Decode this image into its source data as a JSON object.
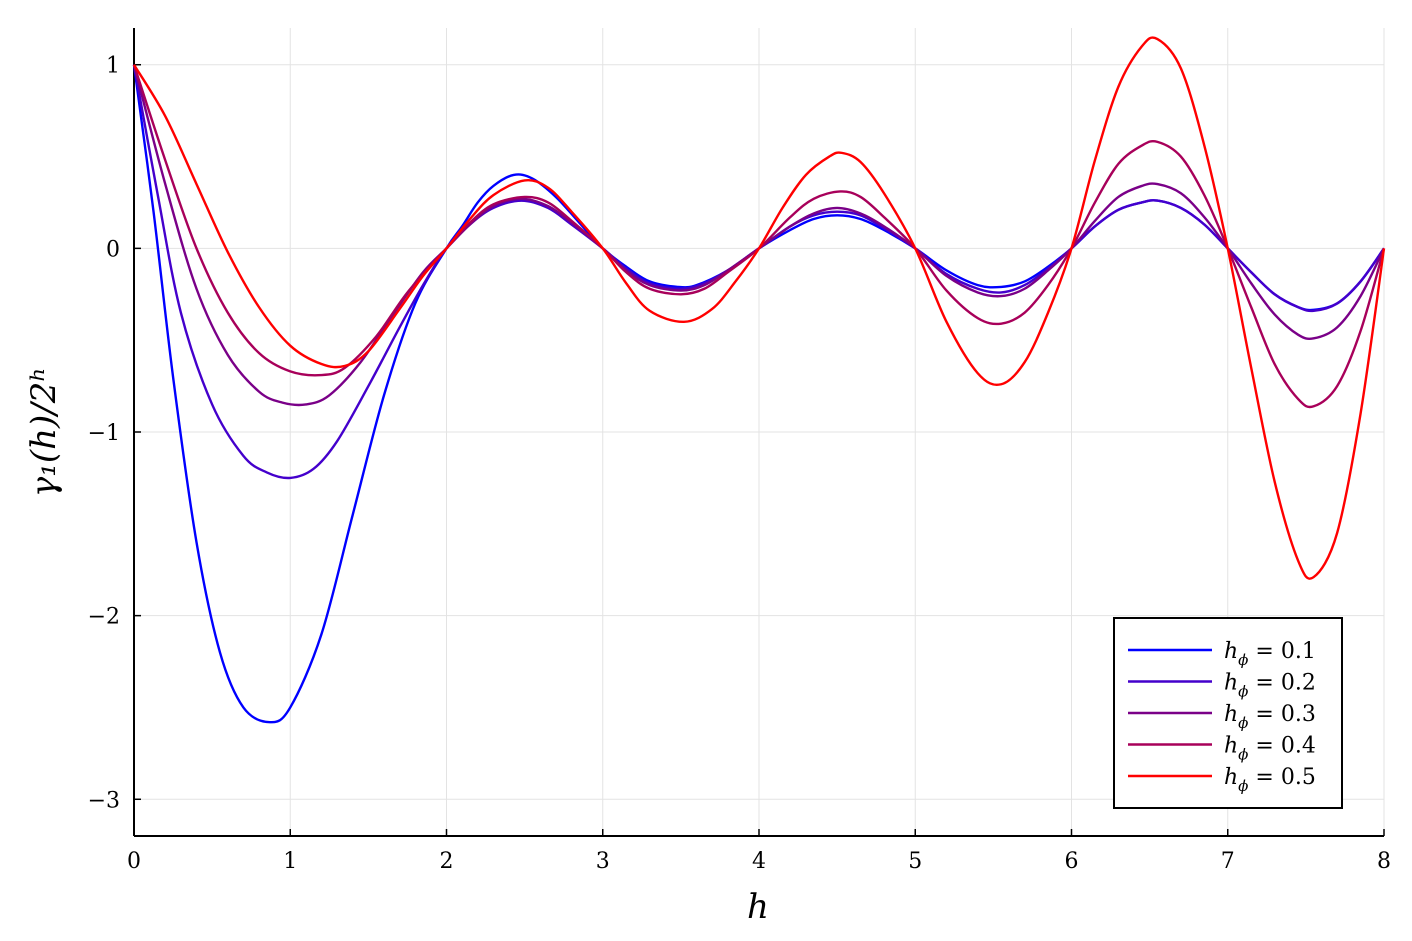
{
  "chart_data": {
    "type": "line",
    "title": "",
    "xlabel": "h",
    "ylabel": "γ₁(h)/2ʰ",
    "xlim": [
      0,
      8
    ],
    "ylim": [
      -3.2,
      1.2
    ],
    "x_ticks": [
      0,
      1,
      2,
      3,
      4,
      5,
      6,
      7,
      8
    ],
    "x_tick_labels": [
      "0",
      "1",
      "2",
      "3",
      "4",
      "5",
      "6",
      "7",
      "8"
    ],
    "y_ticks": [
      1,
      0,
      -1,
      -2,
      -3
    ],
    "y_tick_labels": [
      "1",
      "0",
      "−1",
      "−2",
      "−3"
    ],
    "grid": true,
    "legend_position": "bottom-right",
    "series": [
      {
        "name": "h_ϕ = 0.1",
        "name_main": "h",
        "name_sub": "ϕ",
        "name_rest": " = 0.1",
        "color": "#0000ff",
        "points": [
          [
            0,
            1
          ],
          [
            0.125,
            0.2
          ],
          [
            0.25,
            -0.7
          ],
          [
            0.4,
            -1.6
          ],
          [
            0.55,
            -2.2
          ],
          [
            0.7,
            -2.5
          ],
          [
            0.87,
            -2.58
          ],
          [
            1.0,
            -2.5
          ],
          [
            1.2,
            -2.1
          ],
          [
            1.4,
            -1.45
          ],
          [
            1.6,
            -0.8
          ],
          [
            1.8,
            -0.3
          ],
          [
            2,
            0
          ],
          [
            2.1,
            0.12
          ],
          [
            2.2,
            0.25
          ],
          [
            2.3,
            0.34
          ],
          [
            2.43,
            0.4
          ],
          [
            2.55,
            0.38
          ],
          [
            2.7,
            0.28
          ],
          [
            2.85,
            0.14
          ],
          [
            3,
            0
          ],
          [
            3.15,
            -0.1
          ],
          [
            3.3,
            -0.18
          ],
          [
            3.48,
            -0.21
          ],
          [
            3.6,
            -0.2
          ],
          [
            3.8,
            -0.12
          ],
          [
            4,
            0
          ],
          [
            4.2,
            0.1
          ],
          [
            4.35,
            0.16
          ],
          [
            4.5,
            0.18
          ],
          [
            4.65,
            0.16
          ],
          [
            4.8,
            0.1
          ],
          [
            5,
            0
          ],
          [
            5.2,
            -0.12
          ],
          [
            5.4,
            -0.2
          ],
          [
            5.55,
            -0.21
          ],
          [
            5.7,
            -0.18
          ],
          [
            5.85,
            -0.1
          ],
          [
            6,
            0
          ],
          [
            6.15,
            0.12
          ],
          [
            6.3,
            0.21
          ],
          [
            6.45,
            0.25
          ],
          [
            6.55,
            0.26
          ],
          [
            6.7,
            0.22
          ],
          [
            6.85,
            0.13
          ],
          [
            7,
            0
          ],
          [
            7.15,
            -0.13
          ],
          [
            7.3,
            -0.25
          ],
          [
            7.45,
            -0.32
          ],
          [
            7.55,
            -0.335
          ],
          [
            7.7,
            -0.3
          ],
          [
            7.85,
            -0.18
          ],
          [
            8,
            0
          ]
        ]
      },
      {
        "name": "h_ϕ = 0.2",
        "name_main": "h",
        "name_sub": "ϕ",
        "name_rest": " = 0.2",
        "color": "#4400cc",
        "points": [
          [
            0,
            1
          ],
          [
            0.15,
            0.3
          ],
          [
            0.3,
            -0.35
          ],
          [
            0.5,
            -0.85
          ],
          [
            0.7,
            -1.13
          ],
          [
            0.85,
            -1.22
          ],
          [
            1.0,
            -1.25
          ],
          [
            1.15,
            -1.2
          ],
          [
            1.3,
            -1.05
          ],
          [
            1.5,
            -0.75
          ],
          [
            1.7,
            -0.43
          ],
          [
            1.85,
            -0.2
          ],
          [
            2,
            0
          ],
          [
            2.15,
            0.13
          ],
          [
            2.3,
            0.22
          ],
          [
            2.48,
            0.26
          ],
          [
            2.65,
            0.22
          ],
          [
            2.8,
            0.13
          ],
          [
            3,
            0
          ],
          [
            3.15,
            -0.11
          ],
          [
            3.3,
            -0.19
          ],
          [
            3.5,
            -0.22
          ],
          [
            3.65,
            -0.19
          ],
          [
            3.8,
            -0.12
          ],
          [
            4,
            0
          ],
          [
            4.2,
            0.12
          ],
          [
            4.35,
            0.18
          ],
          [
            4.5,
            0.2
          ],
          [
            4.65,
            0.18
          ],
          [
            4.8,
            0.11
          ],
          [
            5,
            0
          ],
          [
            5.2,
            -0.14
          ],
          [
            5.4,
            -0.22
          ],
          [
            5.55,
            -0.24
          ],
          [
            5.7,
            -0.2
          ],
          [
            5.85,
            -0.11
          ],
          [
            6,
            0
          ],
          [
            6.15,
            0.12
          ],
          [
            6.3,
            0.21
          ],
          [
            6.45,
            0.25
          ],
          [
            6.55,
            0.26
          ],
          [
            6.7,
            0.22
          ],
          [
            6.85,
            0.13
          ],
          [
            7,
            0
          ],
          [
            7.15,
            -0.13
          ],
          [
            7.3,
            -0.25
          ],
          [
            7.45,
            -0.32
          ],
          [
            7.55,
            -0.34
          ],
          [
            7.7,
            -0.3
          ],
          [
            7.85,
            -0.18
          ],
          [
            8,
            0
          ]
        ]
      },
      {
        "name": "h_ϕ = 0.3",
        "name_main": "h",
        "name_sub": "ϕ",
        "name_rest": " = 0.3",
        "color": "#7a0088",
        "points": [
          [
            0,
            1
          ],
          [
            0.2,
            0.35
          ],
          [
            0.4,
            -0.22
          ],
          [
            0.6,
            -0.58
          ],
          [
            0.8,
            -0.78
          ],
          [
            0.95,
            -0.84
          ],
          [
            1.1,
            -0.85
          ],
          [
            1.25,
            -0.8
          ],
          [
            1.45,
            -0.62
          ],
          [
            1.65,
            -0.37
          ],
          [
            1.85,
            -0.13
          ],
          [
            2,
            0
          ],
          [
            2.15,
            0.13
          ],
          [
            2.3,
            0.23
          ],
          [
            2.48,
            0.27
          ],
          [
            2.65,
            0.23
          ],
          [
            2.8,
            0.14
          ],
          [
            3,
            0
          ],
          [
            3.15,
            -0.12
          ],
          [
            3.3,
            -0.2
          ],
          [
            3.5,
            -0.23
          ],
          [
            3.65,
            -0.2
          ],
          [
            3.8,
            -0.12
          ],
          [
            4,
            0
          ],
          [
            4.2,
            0.12
          ],
          [
            4.35,
            0.19
          ],
          [
            4.5,
            0.22
          ],
          [
            4.65,
            0.19
          ],
          [
            4.8,
            0.12
          ],
          [
            5,
            0
          ],
          [
            5.2,
            -0.15
          ],
          [
            5.4,
            -0.24
          ],
          [
            5.55,
            -0.26
          ],
          [
            5.7,
            -0.22
          ],
          [
            5.85,
            -0.12
          ],
          [
            6,
            0
          ],
          [
            6.15,
            0.15
          ],
          [
            6.3,
            0.28
          ],
          [
            6.45,
            0.34
          ],
          [
            6.55,
            0.35
          ],
          [
            6.7,
            0.3
          ],
          [
            6.85,
            0.17
          ],
          [
            7,
            0
          ],
          [
            7.15,
            -0.19
          ],
          [
            7.3,
            -0.36
          ],
          [
            7.45,
            -0.47
          ],
          [
            7.55,
            -0.49
          ],
          [
            7.7,
            -0.43
          ],
          [
            7.85,
            -0.26
          ],
          [
            8,
            0
          ]
        ]
      },
      {
        "name": "h_ϕ = 0.4",
        "name_main": "h",
        "name_sub": "ϕ",
        "name_rest": " = 0.4",
        "color": "#a8005a",
        "points": [
          [
            0,
            1
          ],
          [
            0.2,
            0.48
          ],
          [
            0.4,
            0.0
          ],
          [
            0.6,
            -0.35
          ],
          [
            0.8,
            -0.57
          ],
          [
            1.0,
            -0.67
          ],
          [
            1.2,
            -0.69
          ],
          [
            1.35,
            -0.65
          ],
          [
            1.55,
            -0.48
          ],
          [
            1.75,
            -0.24
          ],
          [
            2,
            0
          ],
          [
            2.15,
            0.14
          ],
          [
            2.3,
            0.24
          ],
          [
            2.5,
            0.28
          ],
          [
            2.65,
            0.25
          ],
          [
            2.8,
            0.15
          ],
          [
            3,
            0
          ],
          [
            3.15,
            -0.13
          ],
          [
            3.3,
            -0.22
          ],
          [
            3.5,
            -0.25
          ],
          [
            3.65,
            -0.22
          ],
          [
            3.8,
            -0.13
          ],
          [
            4,
            0
          ],
          [
            4.2,
            0.17
          ],
          [
            4.35,
            0.27
          ],
          [
            4.52,
            0.31
          ],
          [
            4.65,
            0.28
          ],
          [
            4.8,
            0.17
          ],
          [
            5,
            0
          ],
          [
            5.2,
            -0.23
          ],
          [
            5.4,
            -0.38
          ],
          [
            5.55,
            -0.41
          ],
          [
            5.7,
            -0.35
          ],
          [
            5.85,
            -0.2
          ],
          [
            6,
            0
          ],
          [
            6.15,
            0.25
          ],
          [
            6.3,
            0.46
          ],
          [
            6.45,
            0.56
          ],
          [
            6.55,
            0.58
          ],
          [
            6.7,
            0.5
          ],
          [
            6.85,
            0.29
          ],
          [
            7,
            0
          ],
          [
            7.15,
            -0.32
          ],
          [
            7.3,
            -0.63
          ],
          [
            7.45,
            -0.82
          ],
          [
            7.55,
            -0.86
          ],
          [
            7.7,
            -0.75
          ],
          [
            7.85,
            -0.45
          ],
          [
            8,
            0
          ]
        ]
      },
      {
        "name": "h_ϕ = 0.5",
        "name_main": "h",
        "name_sub": "ϕ",
        "name_rest": " = 0.5",
        "color": "#ff0000",
        "points": [
          [
            0,
            1
          ],
          [
            0.2,
            0.72
          ],
          [
            0.4,
            0.35
          ],
          [
            0.6,
            -0.02
          ],
          [
            0.8,
            -0.32
          ],
          [
            1.0,
            -0.53
          ],
          [
            1.2,
            -0.63
          ],
          [
            1.35,
            -0.64
          ],
          [
            1.5,
            -0.56
          ],
          [
            1.7,
            -0.33
          ],
          [
            1.85,
            -0.15
          ],
          [
            2,
            0
          ],
          [
            2.15,
            0.16
          ],
          [
            2.3,
            0.29
          ],
          [
            2.5,
            0.37
          ],
          [
            2.65,
            0.33
          ],
          [
            2.8,
            0.2
          ],
          [
            3,
            0
          ],
          [
            3.15,
            -0.19
          ],
          [
            3.3,
            -0.34
          ],
          [
            3.52,
            -0.4
          ],
          [
            3.7,
            -0.33
          ],
          [
            3.85,
            -0.18
          ],
          [
            4,
            0
          ],
          [
            4.15,
            0.22
          ],
          [
            4.3,
            0.4
          ],
          [
            4.45,
            0.5
          ],
          [
            4.53,
            0.52
          ],
          [
            4.65,
            0.47
          ],
          [
            4.8,
            0.3
          ],
          [
            5,
            0
          ],
          [
            5.2,
            -0.4
          ],
          [
            5.4,
            -0.68
          ],
          [
            5.55,
            -0.74
          ],
          [
            5.7,
            -0.62
          ],
          [
            5.85,
            -0.35
          ],
          [
            6,
            0
          ],
          [
            6.15,
            0.48
          ],
          [
            6.3,
            0.88
          ],
          [
            6.45,
            1.1
          ],
          [
            6.55,
            1.14
          ],
          [
            6.7,
            0.98
          ],
          [
            6.85,
            0.56
          ],
          [
            7,
            0
          ],
          [
            7.15,
            -0.65
          ],
          [
            7.3,
            -1.27
          ],
          [
            7.45,
            -1.7
          ],
          [
            7.55,
            -1.79
          ],
          [
            7.7,
            -1.55
          ],
          [
            7.85,
            -0.9
          ],
          [
            8,
            0
          ]
        ]
      }
    ]
  }
}
